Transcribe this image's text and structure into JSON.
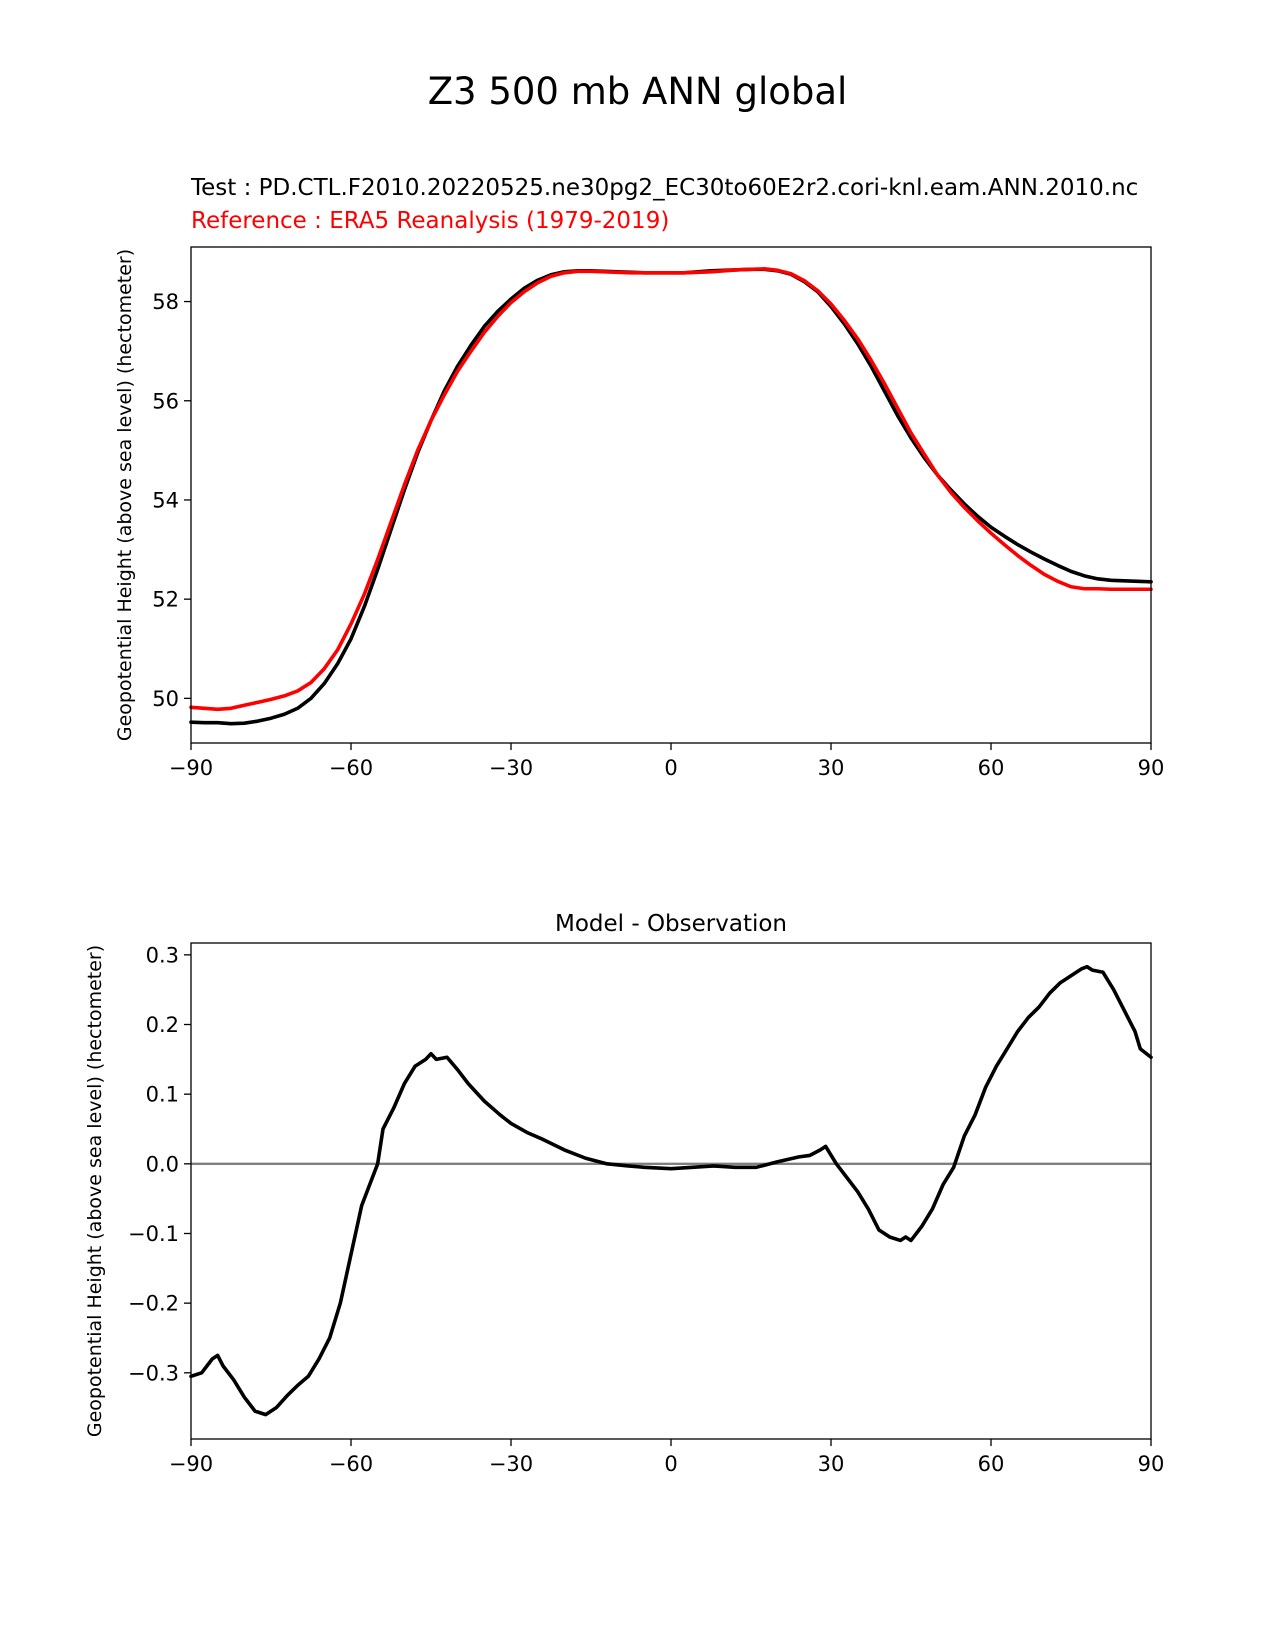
{
  "figure": {
    "suptitle": "Z3 500 mb ANN global",
    "test_label": "Test : PD.CTL.F2010.20220525.ne30pg2_EC30to60E2r2.cori-knl.eam.ANN.2010.nc",
    "reference_label": "Reference : ERA5 Reanalysis (1979-2019)"
  },
  "colors": {
    "test": "#000000",
    "reference": "#ff0000",
    "zero_line": "#808080"
  },
  "chart_data": [
    {
      "type": "line",
      "title": "",
      "xlabel": "",
      "ylabel": "Geopotential Height (above sea level) (hectometer)",
      "xlim": [
        -90,
        90
      ],
      "ylim": [
        49.1,
        59.1
      ],
      "xticks": [
        -90,
        -60,
        -30,
        0,
        30,
        60,
        90
      ],
      "xtick_labels": [
        "−90",
        "−60",
        "−30",
        "0",
        "30",
        "60",
        "90"
      ],
      "yticks": [
        50,
        52,
        54,
        56,
        58
      ],
      "ytick_labels": [
        "50",
        "52",
        "54",
        "56",
        "58"
      ],
      "grid": false,
      "series": [
        {
          "role": "test",
          "x": [
            -90,
            -87.5,
            -85,
            -82.5,
            -80,
            -77.5,
            -75,
            -72.5,
            -70,
            -67.5,
            -65,
            -62.5,
            -60,
            -57.5,
            -55,
            -52.5,
            -50,
            -47.5,
            -45,
            -42.5,
            -40,
            -37.5,
            -35,
            -32.5,
            -30,
            -27.5,
            -25,
            -22.5,
            -20,
            -17.5,
            -15,
            -12.5,
            -10,
            -7.5,
            -5,
            -2.5,
            0,
            2.5,
            5,
            7.5,
            10,
            12.5,
            15,
            17.5,
            20,
            22.5,
            25,
            27.5,
            30,
            32.5,
            35,
            37.5,
            40,
            42.5,
            45,
            47.5,
            50,
            52.5,
            55,
            57.5,
            60,
            62.5,
            65,
            67.5,
            70,
            72.5,
            75,
            77.5,
            80,
            82.5,
            85,
            87.5,
            90
          ],
          "y": [
            49.52,
            49.51,
            49.51,
            49.49,
            49.5,
            49.54,
            49.6,
            49.68,
            49.8,
            50.0,
            50.3,
            50.7,
            51.2,
            51.85,
            52.6,
            53.4,
            54.2,
            54.95,
            55.6,
            56.2,
            56.7,
            57.12,
            57.5,
            57.8,
            58.05,
            58.27,
            58.43,
            58.54,
            58.6,
            58.62,
            58.62,
            58.61,
            58.6,
            58.59,
            58.58,
            58.58,
            58.58,
            58.58,
            58.6,
            58.62,
            58.63,
            58.64,
            58.65,
            58.65,
            58.62,
            58.55,
            58.4,
            58.2,
            57.9,
            57.55,
            57.15,
            56.7,
            56.2,
            55.7,
            55.25,
            54.85,
            54.5,
            54.2,
            53.92,
            53.67,
            53.45,
            53.27,
            53.1,
            52.95,
            52.81,
            52.68,
            52.56,
            52.47,
            52.41,
            52.38,
            52.37,
            52.36,
            52.35
          ]
        },
        {
          "role": "reference",
          "x": [
            -90,
            -87.5,
            -85,
            -82.5,
            -80,
            -77.5,
            -75,
            -72.5,
            -70,
            -67.5,
            -65,
            -62.5,
            -60,
            -57.5,
            -55,
            -52.5,
            -50,
            -47.5,
            -45,
            -42.5,
            -40,
            -37.5,
            -35,
            -32.5,
            -30,
            -27.5,
            -25,
            -22.5,
            -20,
            -17.5,
            -15,
            -12.5,
            -10,
            -7.5,
            -5,
            -2.5,
            0,
            2.5,
            5,
            7.5,
            10,
            12.5,
            15,
            17.5,
            20,
            22.5,
            25,
            27.5,
            30,
            32.5,
            35,
            37.5,
            40,
            42.5,
            45,
            47.5,
            50,
            52.5,
            55,
            57.5,
            60,
            62.5,
            65,
            67.5,
            70,
            72.5,
            75,
            77.5,
            80,
            82.5,
            85,
            87.5,
            90
          ],
          "y": [
            49.82,
            49.8,
            49.78,
            49.8,
            49.86,
            49.92,
            49.98,
            50.05,
            50.15,
            50.32,
            50.6,
            50.98,
            51.5,
            52.1,
            52.8,
            53.55,
            54.3,
            55.0,
            55.6,
            56.12,
            56.6,
            57.0,
            57.38,
            57.7,
            57.98,
            58.2,
            58.38,
            58.51,
            58.58,
            58.61,
            58.61,
            58.6,
            58.59,
            58.58,
            58.58,
            58.58,
            58.58,
            58.58,
            58.59,
            58.6,
            58.62,
            58.64,
            58.65,
            58.66,
            58.63,
            58.56,
            58.42,
            58.22,
            57.95,
            57.62,
            57.25,
            56.82,
            56.35,
            55.85,
            55.35,
            54.92,
            54.5,
            54.15,
            53.85,
            53.58,
            53.33,
            53.1,
            52.88,
            52.68,
            52.5,
            52.36,
            52.25,
            52.21,
            52.21,
            52.2,
            52.2,
            52.2,
            52.2
          ]
        }
      ]
    },
    {
      "type": "line",
      "title": "Model - Observation",
      "xlabel": "",
      "ylabel": "Geopotential Height (above sea level) (hectometer)",
      "xlim": [
        -90,
        90
      ],
      "ylim": [
        -0.395,
        0.317
      ],
      "xticks": [
        -90,
        -60,
        -30,
        0,
        30,
        60,
        90
      ],
      "xtick_labels": [
        "−90",
        "−60",
        "−30",
        "0",
        "30",
        "60",
        "90"
      ],
      "yticks": [
        -0.3,
        -0.2,
        -0.1,
        0.0,
        0.1,
        0.2,
        0.3
      ],
      "ytick_labels": [
        "−0.3",
        "−0.2",
        "−0.1",
        "0.0",
        "0.1",
        "0.2",
        "0.3"
      ],
      "zero_line": 0.0,
      "grid": false,
      "series": [
        {
          "role": "difference",
          "x": [
            -90,
            -88,
            -86,
            -85,
            -84,
            -82,
            -80,
            -78,
            -76,
            -74,
            -72,
            -70,
            -68,
            -66,
            -64,
            -62,
            -60,
            -58,
            -56,
            -55,
            -54,
            -52,
            -50,
            -48,
            -46,
            -45,
            -44,
            -42,
            -40,
            -38,
            -35,
            -32,
            -30,
            -27,
            -24,
            -20,
            -16,
            -12,
            -8,
            -5,
            0,
            4,
            8,
            12,
            16,
            20,
            24,
            26,
            28,
            29,
            31,
            33,
            35,
            37,
            39,
            41,
            43,
            44,
            45,
            47,
            49,
            51,
            53,
            55,
            57,
            59,
            61,
            63,
            65,
            67,
            69,
            71,
            73,
            75,
            77,
            78,
            79,
            81,
            83,
            85,
            87,
            88,
            90
          ],
          "y": [
            -0.305,
            -0.3,
            -0.28,
            -0.275,
            -0.29,
            -0.31,
            -0.335,
            -0.355,
            -0.36,
            -0.35,
            -0.333,
            -0.318,
            -0.305,
            -0.28,
            -0.25,
            -0.2,
            -0.13,
            -0.06,
            -0.02,
            0.0,
            0.05,
            0.08,
            0.115,
            0.14,
            0.15,
            0.158,
            0.15,
            0.153,
            0.135,
            0.115,
            0.09,
            0.07,
            0.058,
            0.045,
            0.035,
            0.02,
            0.008,
            0.0,
            -0.003,
            -0.005,
            -0.007,
            -0.005,
            -0.003,
            -0.005,
            -0.005,
            0.003,
            0.01,
            0.012,
            0.02,
            0.025,
            0.0,
            -0.02,
            -0.04,
            -0.065,
            -0.095,
            -0.105,
            -0.11,
            -0.105,
            -0.11,
            -0.09,
            -0.065,
            -0.03,
            -0.005,
            0.04,
            0.07,
            0.11,
            0.14,
            0.165,
            0.19,
            0.21,
            0.225,
            0.245,
            0.26,
            0.27,
            0.28,
            0.283,
            0.278,
            0.275,
            0.25,
            0.22,
            0.19,
            0.165,
            0.153
          ]
        }
      ]
    }
  ]
}
